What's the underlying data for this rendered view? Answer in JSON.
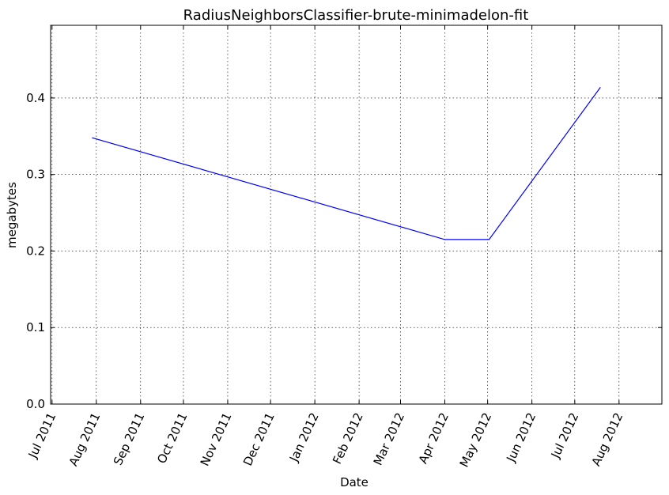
{
  "chart_data": {
    "type": "line",
    "title": "RadiusNeighborsClassifier-brute-minimadelon-fit",
    "xlabel": "Date",
    "ylabel": "megabytes",
    "x_ticks": [
      "Jul 2011",
      "Aug 2011",
      "Sep 2011",
      "Oct 2011",
      "Nov 2011",
      "Dec 2011",
      "Jan 2012",
      "Feb 2012",
      "Mar 2012",
      "Apr 2012",
      "May 2012",
      "Jun 2012",
      "Jul 2012",
      "Aug 2012"
    ],
    "y_ticks": [
      "0.0",
      "0.1",
      "0.2",
      "0.3",
      "0.4"
    ],
    "xlim": [
      "2011-06-30",
      "2012-08-31"
    ],
    "ylim": [
      0,
      0.495
    ],
    "grid": true,
    "series": [
      {
        "color": "#0000ff",
        "x": [
          "2011-07-29",
          "2012-04-01",
          "2012-05-02",
          "2012-07-19"
        ],
        "y": [
          0.348,
          0.215,
          0.215,
          0.414
        ]
      }
    ]
  }
}
